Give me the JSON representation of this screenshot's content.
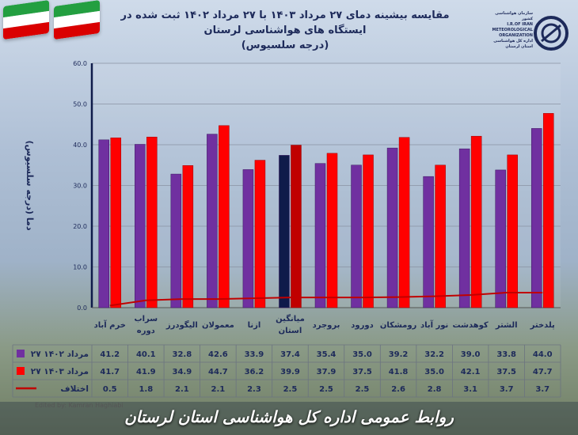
{
  "title": {
    "line1": "مقایسه بیشینه دمای ۲۷ مرداد ۱۴۰۳ با ۲۷ مرداد ۱۴۰۲ ثبت شده در ایستگاه های هواشناسی لرستان",
    "line2": "(درجه سلسیوس)"
  },
  "logo": {
    "line1": "سازمان هواشناسی کشور",
    "line2": "I.R.OF IRAN",
    "line3": "METEOROLOGICAL",
    "line4": "ORGANIZATION",
    "line5": "اداره کل هواشناسی",
    "line6": "استان لرستان"
  },
  "footer": "روابط عمومی اداره کل هواشناسی استان لرستان",
  "credit": "Edited by: Kamran Haghiabi",
  "colors": {
    "y1402": "#7030a0",
    "y1403": "#ff0000",
    "diff": "#c00000",
    "highlight": "#0f1b4a"
  },
  "chart_data": {
    "type": "bar",
    "ylabel": "دما (درجه سلسیوس)",
    "ylim": [
      0,
      60
    ],
    "yticks": [
      "0.0",
      "10.0",
      "20.0",
      "30.0",
      "40.0",
      "50.0",
      "60.0"
    ],
    "categories": [
      "خرم آباد",
      "سراب دوره",
      "الیگودرز",
      "معمولان",
      "ازنا",
      "میانگین استان",
      "بروجرد",
      "دورود",
      "رومشکان",
      "نور آباد",
      "کوهدشت",
      "الشتر",
      "پلدختر"
    ],
    "highlight_index": 5,
    "series": [
      {
        "name": "۲۷ مرداد ۱۴۰۲",
        "type": "bar",
        "values": [
          41.2,
          40.1,
          32.8,
          42.6,
          33.9,
          37.4,
          35.4,
          35.0,
          39.2,
          32.2,
          39.0,
          33.8,
          44.0
        ]
      },
      {
        "name": "۲۷ مرداد ۱۴۰۳",
        "type": "bar",
        "values": [
          41.7,
          41.9,
          34.9,
          44.7,
          36.2,
          39.9,
          37.9,
          37.5,
          41.8,
          35.0,
          42.1,
          37.5,
          47.7
        ]
      },
      {
        "name": "اختلاف",
        "type": "line",
        "values": [
          0.5,
          1.8,
          2.1,
          2.1,
          2.3,
          2.5,
          2.5,
          2.5,
          2.6,
          2.8,
          3.1,
          3.7,
          3.7
        ]
      }
    ]
  }
}
